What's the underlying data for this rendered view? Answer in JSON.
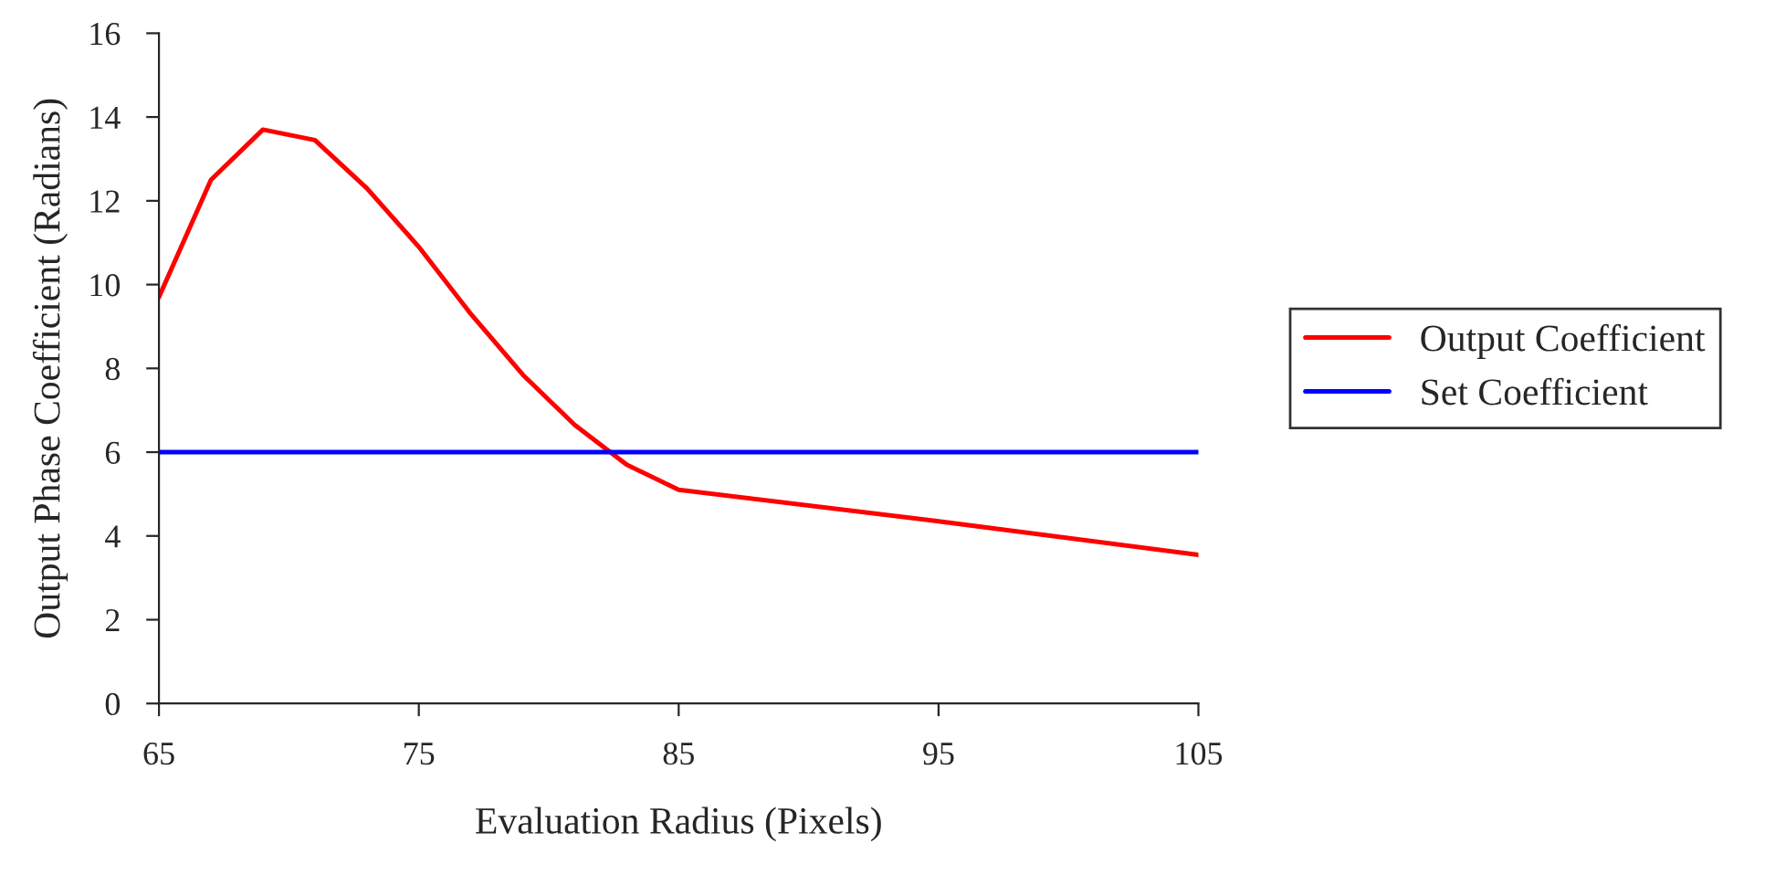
{
  "chart_data": {
    "type": "line",
    "xlabel": "Evaluation Radius (Pixels)",
    "ylabel": "Output Phase Coefficient (Radians)",
    "xlim": [
      65,
      105
    ],
    "xticks": [
      65,
      75,
      85,
      95,
      105
    ],
    "ylim": [
      0,
      16
    ],
    "yticks": [
      0,
      2,
      4,
      6,
      8,
      10,
      12,
      14,
      16
    ],
    "grid": false,
    "legend": "right",
    "marker": "none",
    "line_style": "solid",
    "series": [
      {
        "name": "Output Coefficient",
        "color": "#ff0000",
        "x": [
          65,
          67,
          69,
          71,
          73,
          75,
          77,
          79,
          81,
          83,
          85,
          95,
          105
        ],
        "values": [
          9.7,
          12.5,
          13.7,
          13.45,
          12.3,
          10.9,
          9.3,
          7.85,
          6.65,
          5.7,
          5.1,
          4.35,
          3.55
        ]
      },
      {
        "name": "Set Coefficient",
        "color": "#0000ff",
        "x": [
          65,
          105
        ],
        "values": [
          6,
          6
        ]
      }
    ]
  }
}
